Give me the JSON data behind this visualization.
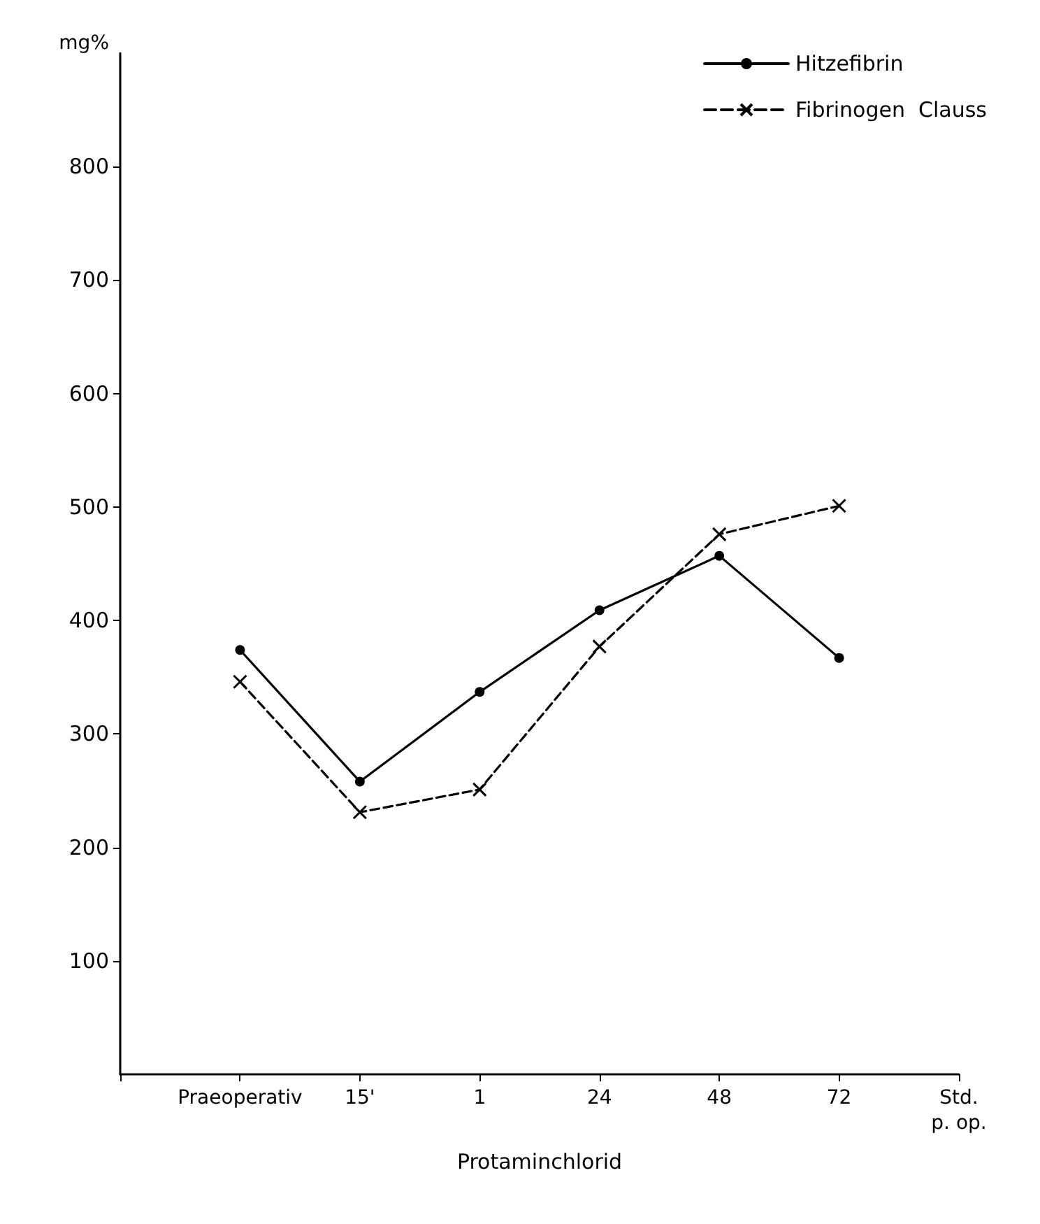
{
  "chart_data": {
    "type": "line",
    "xlabel": "Protaminchlorid",
    "ylabel": "mg%",
    "categories": [
      null,
      "Praeoperativ",
      "15'",
      "1",
      "24",
      "48",
      "72",
      "Std.\np. op."
    ],
    "series": [
      {
        "name": "Hitzefibrin",
        "color": "#000000",
        "marker": "circle",
        "line_style": "solid",
        "values": [
          null,
          374,
          258,
          337,
          409,
          457,
          367,
          null
        ]
      },
      {
        "name": "Fibrinogen  Clauss",
        "color": "#000000",
        "marker": "cross",
        "line_style": "dashed",
        "values": [
          null,
          346,
          231,
          251,
          377,
          476,
          501,
          null
        ]
      }
    ],
    "ylim": [
      0,
      900
    ],
    "yticks": [
      100,
      200,
      300,
      400,
      500,
      600,
      700,
      800
    ],
    "grid": false,
    "legend": "top right"
  }
}
